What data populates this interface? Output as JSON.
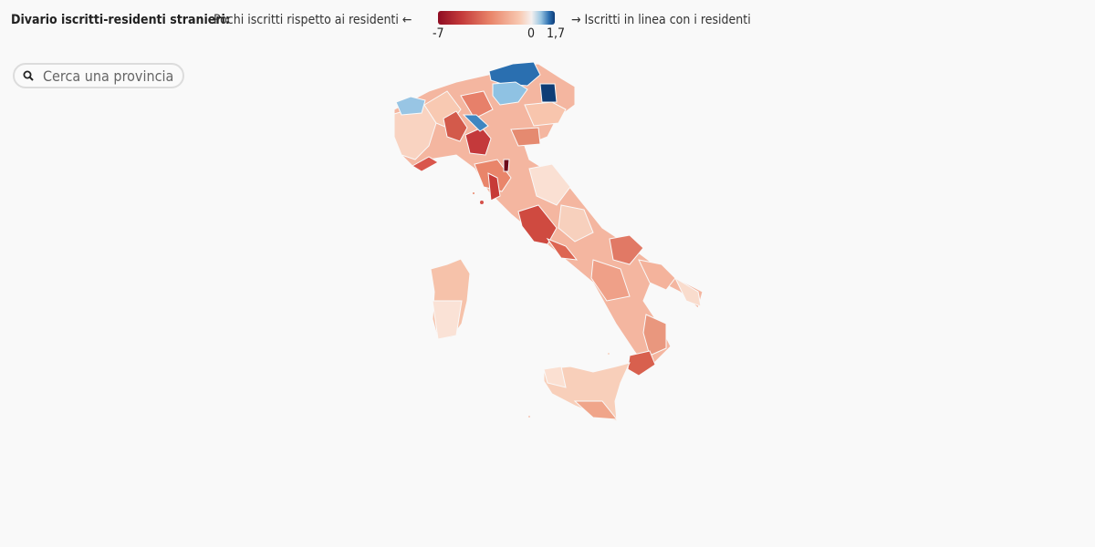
{
  "legend": {
    "title": "Divario iscritti-residenti stranieri:",
    "left_label": "Pochi iscritti rispetto ai residenti ←",
    "right_label": "→ Iscritti in linea con i residenti",
    "tick_min": "-7",
    "tick_zero": "0",
    "tick_max": "1,7",
    "scale_min": -7,
    "scale_max": 1.7,
    "colors": {
      "low": "#8f0c22",
      "mid": "#f5f0ef",
      "high": "#0d3c78"
    }
  },
  "search": {
    "placeholder": "Cerca una provincia",
    "value": "",
    "icon": "search-icon"
  },
  "map": {
    "subject": "Italian provinces choropleth"
  }
}
